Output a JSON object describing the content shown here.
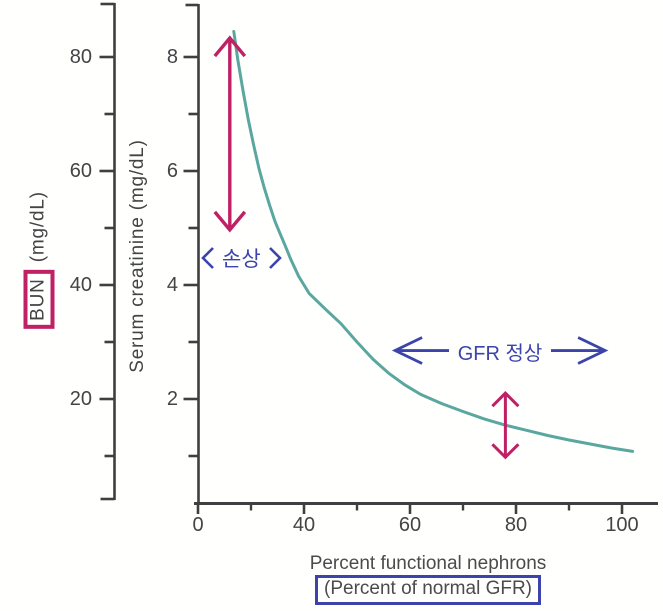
{
  "colors": {
    "crimson": "#bf2164",
    "blue": "#3c44ac",
    "curve_teal": "#5aa79f",
    "axis": "#3e3f41",
    "tick_text": "#434446",
    "label_text": "#4a4b4d"
  },
  "chart_data": {
    "type": "line",
    "x_axis": {
      "title_line1": "Percent functional nephrons",
      "title_line2": "(Percent of normal GFR)",
      "major_ticks": [
        0,
        40,
        60,
        80,
        100
      ],
      "minor_ticks": [
        20,
        50,
        70,
        90
      ],
      "range": [
        0,
        106
      ]
    },
    "creatinine_axis": {
      "title": "Serum creatinine (mg/dL)",
      "major_ticks": [
        8,
        6,
        4,
        2
      ],
      "minor_ticks": [
        7,
        5,
        3,
        1
      ],
      "range": [
        0,
        8.7
      ]
    },
    "bun_axis": {
      "title_main": "BUN",
      "title_unit": " (mg/dL)",
      "major_ticks": [
        80,
        60,
        40,
        20
      ],
      "minor_ticks": [
        70,
        50,
        30,
        10
      ],
      "range": [
        0,
        87
      ]
    },
    "series": [
      {
        "name": "serum-creatinine-curve",
        "color": "#5aa79f",
        "points": [
          [
            13.5,
            8.45
          ],
          [
            15,
            7.95
          ],
          [
            17,
            7.4
          ],
          [
            19,
            6.9
          ],
          [
            21,
            6.45
          ],
          [
            23,
            6.05
          ],
          [
            25,
            5.7
          ],
          [
            27,
            5.4
          ],
          [
            29,
            5.12
          ],
          [
            31,
            4.9
          ],
          [
            33,
            4.68
          ],
          [
            35,
            4.45
          ],
          [
            38,
            4.15
          ],
          [
            41,
            3.85
          ],
          [
            44,
            3.58
          ],
          [
            47,
            3.32
          ],
          [
            50,
            3.0
          ],
          [
            53,
            2.7
          ],
          [
            56,
            2.45
          ],
          [
            59,
            2.25
          ],
          [
            62,
            2.08
          ],
          [
            66,
            1.92
          ],
          [
            70,
            1.78
          ],
          [
            74,
            1.65
          ],
          [
            78,
            1.54
          ],
          [
            82,
            1.45
          ],
          [
            86,
            1.36
          ],
          [
            90,
            1.28
          ],
          [
            94,
            1.21
          ],
          [
            98,
            1.14
          ],
          [
            102,
            1.08
          ]
        ]
      }
    ],
    "annotations": [
      {
        "id": "damage-range-arrow",
        "type": "vertical-double-arrow",
        "color": "#bf2164",
        "x": 12,
        "y_from": 4.95,
        "y_to": 8.35
      },
      {
        "id": "damage-label",
        "type": "label",
        "text": "손상",
        "color": "#3c44ac",
        "x": 19,
        "y": 4.45
      },
      {
        "id": "gfr-normal-arrow",
        "type": "horizontal-double-arrow",
        "color": "#3c44ac",
        "x_from": 57,
        "x_to": 97,
        "y": 2.85,
        "label": "GFR 정상"
      },
      {
        "id": "creatinine-rise-arrow",
        "type": "vertical-double-arrow",
        "color": "#bf2164",
        "x": 78,
        "y_from": 0.96,
        "y_to": 2.12
      }
    ]
  }
}
